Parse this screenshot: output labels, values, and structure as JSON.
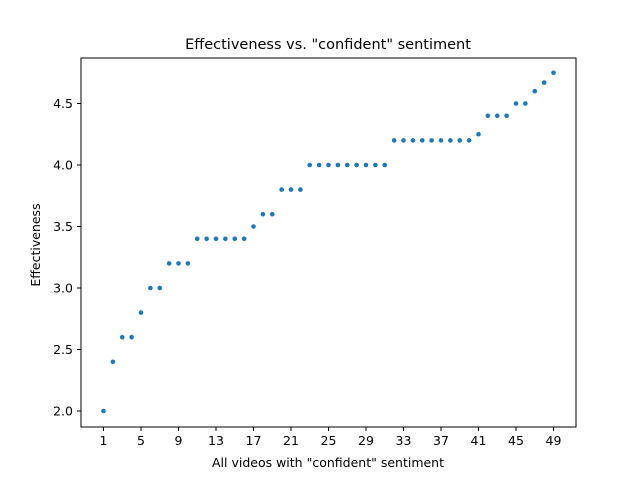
{
  "chart_data": {
    "type": "scatter",
    "title": "Effectiveness vs. \"confident\" sentiment",
    "xlabel": "All videos with \"confident\" sentiment",
    "ylabel": "Effectiveness",
    "xlim": [
      -1.4,
      51.4
    ],
    "ylim": [
      1.87,
      4.87
    ],
    "xticks": [
      1,
      5,
      9,
      13,
      17,
      21,
      25,
      29,
      33,
      37,
      41,
      45,
      49
    ],
    "yticks": [
      2.0,
      2.5,
      3.0,
      3.5,
      4.0,
      4.5
    ],
    "ytick_labels": [
      "2.0",
      "2.5",
      "3.0",
      "3.5",
      "4.0",
      "4.5"
    ],
    "grid": false,
    "series": [
      {
        "color": "#1f77b4",
        "x": [
          1,
          2,
          3,
          4,
          5,
          6,
          7,
          8,
          9,
          10,
          11,
          12,
          13,
          14,
          15,
          16,
          17,
          18,
          19,
          20,
          21,
          22,
          23,
          24,
          25,
          26,
          27,
          28,
          29,
          30,
          31,
          32,
          33,
          34,
          35,
          36,
          37,
          38,
          39,
          40,
          41,
          42,
          43,
          44,
          45,
          46,
          47,
          48,
          49
        ],
        "y": [
          2.0,
          2.4,
          2.6,
          2.6,
          2.8,
          3.0,
          3.0,
          3.2,
          3.2,
          3.2,
          3.4,
          3.4,
          3.4,
          3.4,
          3.4,
          3.4,
          3.5,
          3.6,
          3.6,
          3.8,
          3.8,
          3.8,
          4.0,
          4.0,
          4.0,
          4.0,
          4.0,
          4.0,
          4.0,
          4.0,
          4.0,
          4.2,
          4.2,
          4.2,
          4.2,
          4.2,
          4.2,
          4.2,
          4.2,
          4.2,
          4.25,
          4.4,
          4.4,
          4.4,
          4.5,
          4.5,
          4.6,
          4.67,
          4.75
        ]
      }
    ]
  }
}
